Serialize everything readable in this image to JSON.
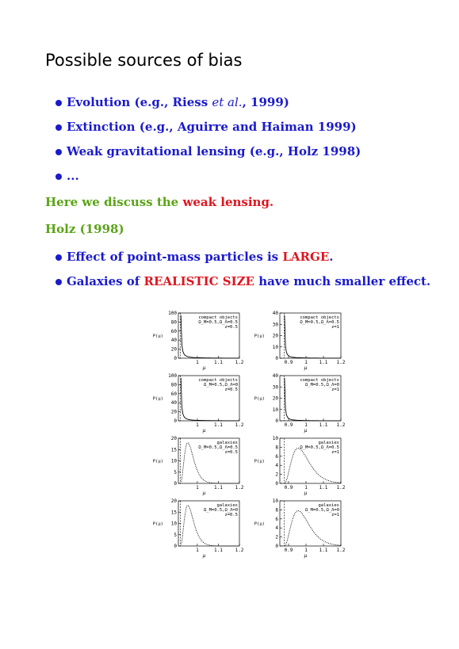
{
  "title": "Possible sources of bias",
  "bullets1": [
    {
      "pre": "Evolution (",
      "em": "e.g.",
      "mid": ", Riess ",
      "etal": "et al.",
      "post": ", 1999)"
    },
    {
      "pre": "Extinction (",
      "em": "e.g.",
      "mid": ", Aguirre and Haiman 1999)",
      "etal": "",
      "post": ""
    },
    {
      "pre": "Weak gravitational lensing (",
      "em": "e.g.",
      "mid": ", Holz 1998)",
      "etal": "",
      "post": ""
    },
    {
      "pre": "...",
      "em": "",
      "mid": "",
      "etal": "",
      "post": ""
    }
  ],
  "discuss": {
    "pre": "Here we discuss the ",
    "highlight": "weak lensing."
  },
  "holz": "Holz (1998)",
  "bullets2": [
    {
      "pre": "Effect of point-mass particles is ",
      "highlight": "LARGE",
      "post": "."
    },
    {
      "pre": "Galaxies of ",
      "highlight": "REALISTIC SIZE",
      "post": " have much smaller effect."
    }
  ],
  "colors": {
    "blue": "#1a1acc",
    "green": "#5aa316",
    "red": "#e0141e"
  },
  "chart_data": [
    {
      "type": "line",
      "legend": [
        "compact objects",
        "Ω_M=0.5,Ω_Λ=0.5",
        "z=0.5"
      ],
      "ylabel": "P(μ)",
      "xlabel": "μ",
      "yticks": [
        "0",
        "20",
        "40",
        "60",
        "80",
        "100"
      ],
      "xticks": [
        "1",
        "1.1",
        "1.2"
      ],
      "ylim": [
        0,
        100
      ],
      "xlim": [
        0.91,
        1.2
      ]
    },
    {
      "type": "line",
      "legend": [
        "compact objects",
        "Ω_M=0.5,Ω_Λ=0.5",
        "z=1"
      ],
      "ylabel": "P(μ)",
      "xlabel": "μ",
      "yticks": [
        "0",
        "10",
        "20",
        "30",
        "40"
      ],
      "xticks": [
        "0.9",
        "1",
        "1.1",
        "1.2"
      ],
      "ylim": [
        0,
        40
      ],
      "xlim": [
        0.85,
        1.2
      ]
    },
    {
      "type": "line",
      "legend": [
        "compact objects",
        "Ω_M=0.5,Ω_Λ=0",
        "z=0.5"
      ],
      "ylabel": "P(μ)",
      "xlabel": "μ",
      "yticks": [
        "0",
        "20",
        "40",
        "60",
        "80",
        "100"
      ],
      "xticks": [
        "1",
        "1.1",
        "1.2"
      ],
      "ylim": [
        0,
        100
      ],
      "xlim": [
        0.91,
        1.2
      ]
    },
    {
      "type": "line",
      "legend": [
        "compact objects",
        "Ω_M=0.5,Ω_Λ=0",
        "z=1"
      ],
      "ylabel": "P(μ)",
      "xlabel": "μ",
      "yticks": [
        "0",
        "10",
        "20",
        "30",
        "40"
      ],
      "xticks": [
        "0.9",
        "1",
        "1.1",
        "1.2"
      ],
      "ylim": [
        0,
        40
      ],
      "xlim": [
        0.85,
        1.2
      ]
    },
    {
      "type": "line",
      "legend": [
        "galaxies",
        "Ω_M=0.5,Ω_Λ=0.5",
        "z=0.5"
      ],
      "ylabel": "P(μ)",
      "xlabel": "μ",
      "yticks": [
        "0",
        "5",
        "10",
        "15",
        "20"
      ],
      "xticks": [
        "1",
        "1.1",
        "1.2"
      ],
      "ylim": [
        0,
        20
      ],
      "xlim": [
        0.91,
        1.2
      ]
    },
    {
      "type": "line",
      "legend": [
        "galaxies",
        "Ω_M=0.5,Ω_Λ=0.5",
        "z=1"
      ],
      "ylabel": "P(μ)",
      "xlabel": "μ",
      "yticks": [
        "0",
        "2",
        "4",
        "6",
        "8",
        "10"
      ],
      "xticks": [
        "0.9",
        "1",
        "1.1",
        "1.2"
      ],
      "ylim": [
        0,
        10
      ],
      "xlim": [
        0.85,
        1.2
      ]
    },
    {
      "type": "line",
      "legend": [
        "galaxies",
        "Ω_M=0.5,Ω_Λ=0",
        "z=0.5"
      ],
      "ylabel": "P(μ)",
      "xlabel": "μ",
      "yticks": [
        "0",
        "5",
        "10",
        "15",
        "20"
      ],
      "xticks": [
        "1",
        "1.1",
        "1.2"
      ],
      "ylim": [
        0,
        20
      ],
      "xlim": [
        0.91,
        1.2
      ]
    },
    {
      "type": "line",
      "legend": [
        "galaxies",
        "Ω_M=0.5,Ω_Λ=0",
        "z=1"
      ],
      "ylabel": "P(μ)",
      "xlabel": "μ",
      "yticks": [
        "0",
        "2",
        "4",
        "6",
        "8",
        "10"
      ],
      "xticks": [
        "0.9",
        "1",
        "1.1",
        "1.2"
      ],
      "ylim": [
        0,
        10
      ],
      "xlim": [
        0.85,
        1.2
      ]
    }
  ]
}
